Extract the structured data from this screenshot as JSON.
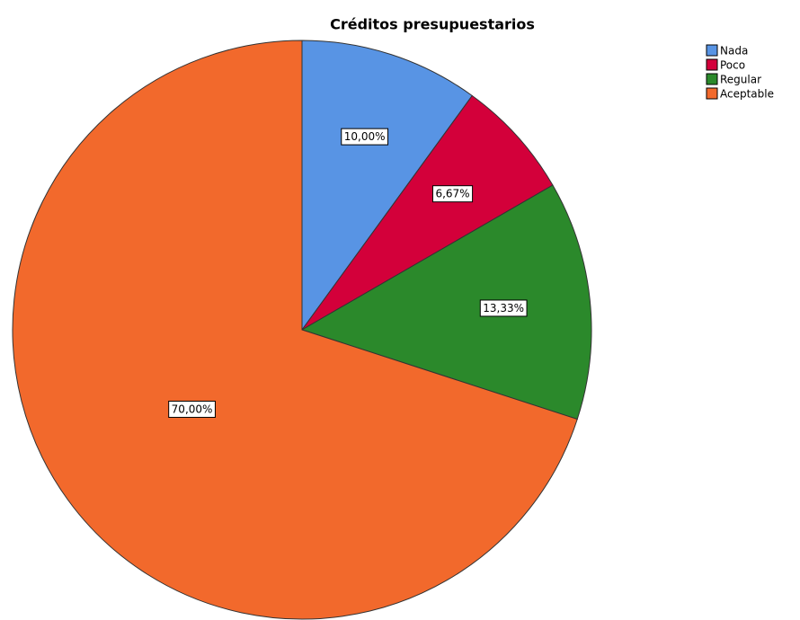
{
  "chart_data": {
    "type": "pie",
    "title": "Créditos presupuestarios",
    "categories": [
      "Nada",
      "Poco",
      "Regular",
      "Aceptable"
    ],
    "values": [
      10,
      6.67,
      13.33,
      70
    ],
    "value_labels": [
      "10,00%",
      "6,67%",
      "13,33%",
      "70,00%"
    ],
    "colors": [
      "#5894e4",
      "#d3003a",
      "#2b892b",
      "#f2692c"
    ],
    "legend": "top-right"
  }
}
